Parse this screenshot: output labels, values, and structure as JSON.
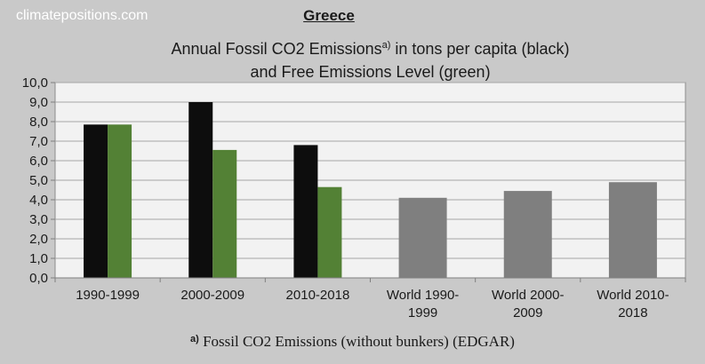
{
  "site_label": "climatepositions.com",
  "country": "Greece",
  "subtitle_part1": "Annual Fossil CO2 Emissions",
  "subtitle_sup": "a)",
  "subtitle_part2": " in tons per capita (black)",
  "subtitle_line2": "and Free Emissions Level (green)",
  "footnote_mark": "a)",
  "footnote_text": " Fossil CO2 Emissions (without bunkers) (EDGAR)",
  "colors": {
    "emissions": "#0d0d0d",
    "free_level": "#538135",
    "world": "#7f7f7f",
    "plot_bg": "#f2f2f2",
    "grid": "#a6a6a6"
  },
  "chart_data": {
    "type": "bar",
    "categories": [
      [
        "1990-1999"
      ],
      [
        "2000-2009"
      ],
      [
        "2010-2018"
      ],
      [
        "World 1990-",
        "1999"
      ],
      [
        "World 2000-",
        "2009"
      ],
      [
        "World 2010-",
        "2018"
      ]
    ],
    "series": [
      {
        "color": "#0d0d0d",
        "values": [
          7.85,
          9.0,
          6.8,
          null,
          null,
          null
        ]
      },
      {
        "color": "#538135",
        "values": [
          7.85,
          6.55,
          4.65,
          null,
          null,
          null
        ]
      },
      {
        "color": "#7f7f7f",
        "values": [
          null,
          null,
          null,
          4.1,
          4.45,
          4.9
        ]
      }
    ],
    "yticks": [
      "0,0",
      "1,0",
      "2,0",
      "3,0",
      "4,0",
      "5,0",
      "6,0",
      "7,0",
      "8,0",
      "9,0",
      "10,0"
    ],
    "ylim": [
      0,
      10
    ],
    "grid": true
  }
}
